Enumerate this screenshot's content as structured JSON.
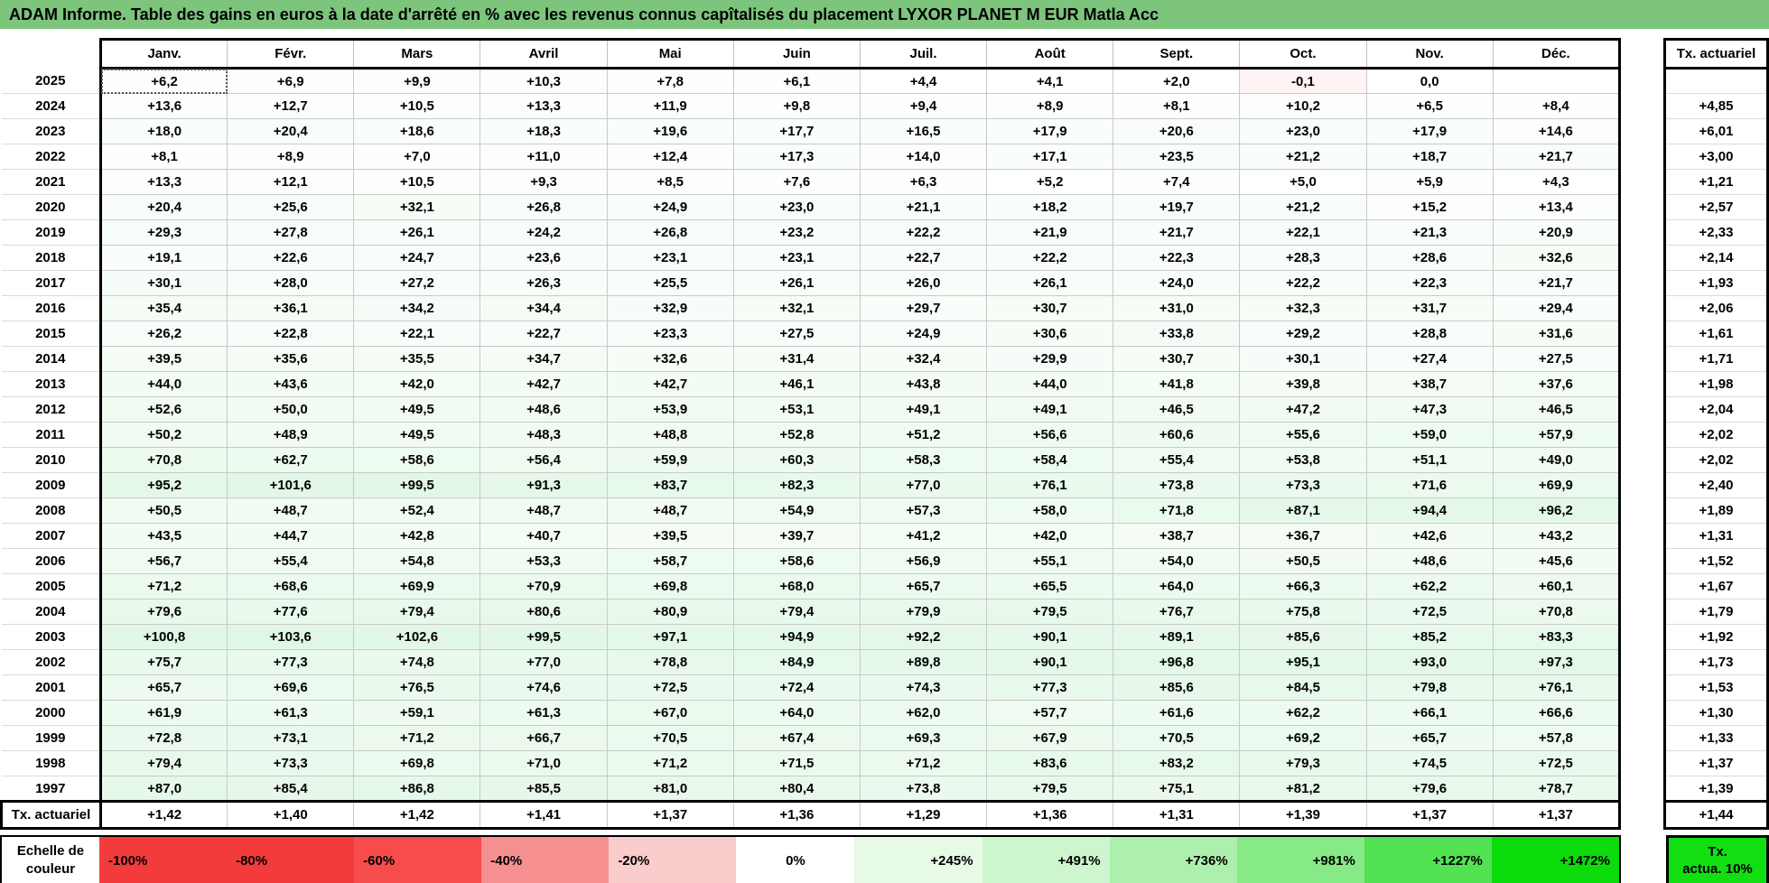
{
  "title": "ADAM Informe. Table des gains en euros à la date d'arrêté en % avec les revenus connus capîtalisés du placement LYXOR PLANET M EUR Matla Acc",
  "colors": {
    "title_bg": "#7DC57D",
    "grid_line": "#C9C9C9",
    "thick_border": "#000000"
  },
  "months": [
    "Janv.",
    "Févr.",
    "Mars",
    "Avril",
    "Mai",
    "Juin",
    "Juil.",
    "Août",
    "Sept.",
    "Oct.",
    "Nov.",
    "Déc."
  ],
  "tx_header": "Tx. actuariel",
  "rows": [
    {
      "year": "2025",
      "values": [
        "+6,2",
        "+6,9",
        "+9,9",
        "+10,3",
        "+7,8",
        "+6,1",
        "+4,4",
        "+4,1",
        "+2,0",
        "-0,1",
        "0,0",
        ""
      ],
      "tx": ""
    },
    {
      "year": "2024",
      "values": [
        "+13,6",
        "+12,7",
        "+10,5",
        "+13,3",
        "+11,9",
        "+9,8",
        "+9,4",
        "+8,9",
        "+8,1",
        "+10,2",
        "+6,5",
        "+8,4"
      ],
      "tx": "+4,85"
    },
    {
      "year": "2023",
      "values": [
        "+18,0",
        "+20,4",
        "+18,6",
        "+18,3",
        "+19,6",
        "+17,7",
        "+16,5",
        "+17,9",
        "+20,6",
        "+23,0",
        "+17,9",
        "+14,6"
      ],
      "tx": "+6,01"
    },
    {
      "year": "2022",
      "values": [
        "+8,1",
        "+8,9",
        "+7,0",
        "+11,0",
        "+12,4",
        "+17,3",
        "+14,0",
        "+17,1",
        "+23,5",
        "+21,2",
        "+18,7",
        "+21,7"
      ],
      "tx": "+3,00"
    },
    {
      "year": "2021",
      "values": [
        "+13,3",
        "+12,1",
        "+10,5",
        "+9,3",
        "+8,5",
        "+7,6",
        "+6,3",
        "+5,2",
        "+7,4",
        "+5,0",
        "+5,9",
        "+4,3"
      ],
      "tx": "+1,21"
    },
    {
      "year": "2020",
      "values": [
        "+20,4",
        "+25,6",
        "+32,1",
        "+26,8",
        "+24,9",
        "+23,0",
        "+21,1",
        "+18,2",
        "+19,7",
        "+21,2",
        "+15,2",
        "+13,4"
      ],
      "tx": "+2,57"
    },
    {
      "year": "2019",
      "values": [
        "+29,3",
        "+27,8",
        "+26,1",
        "+24,2",
        "+26,8",
        "+23,2",
        "+22,2",
        "+21,9",
        "+21,7",
        "+22,1",
        "+21,3",
        "+20,9"
      ],
      "tx": "+2,33"
    },
    {
      "year": "2018",
      "values": [
        "+19,1",
        "+22,6",
        "+24,7",
        "+23,6",
        "+23,1",
        "+23,1",
        "+22,7",
        "+22,2",
        "+22,3",
        "+28,3",
        "+28,6",
        "+32,6"
      ],
      "tx": "+2,14"
    },
    {
      "year": "2017",
      "values": [
        "+30,1",
        "+28,0",
        "+27,2",
        "+26,3",
        "+25,5",
        "+26,1",
        "+26,0",
        "+26,1",
        "+24,0",
        "+22,2",
        "+22,3",
        "+21,7"
      ],
      "tx": "+1,93"
    },
    {
      "year": "2016",
      "values": [
        "+35,4",
        "+36,1",
        "+34,2",
        "+34,4",
        "+32,9",
        "+32,1",
        "+29,7",
        "+30,7",
        "+31,0",
        "+32,3",
        "+31,7",
        "+29,4"
      ],
      "tx": "+2,06"
    },
    {
      "year": "2015",
      "values": [
        "+26,2",
        "+22,8",
        "+22,1",
        "+22,7",
        "+23,3",
        "+27,5",
        "+24,9",
        "+30,6",
        "+33,8",
        "+29,2",
        "+28,8",
        "+31,6"
      ],
      "tx": "+1,61"
    },
    {
      "year": "2014",
      "values": [
        "+39,5",
        "+35,6",
        "+35,5",
        "+34,7",
        "+32,6",
        "+31,4",
        "+32,4",
        "+29,9",
        "+30,7",
        "+30,1",
        "+27,4",
        "+27,5"
      ],
      "tx": "+1,71"
    },
    {
      "year": "2013",
      "values": [
        "+44,0",
        "+43,6",
        "+42,0",
        "+42,7",
        "+42,7",
        "+46,1",
        "+43,8",
        "+44,0",
        "+41,8",
        "+39,8",
        "+38,7",
        "+37,6"
      ],
      "tx": "+1,98"
    },
    {
      "year": "2012",
      "values": [
        "+52,6",
        "+50,0",
        "+49,5",
        "+48,6",
        "+53,9",
        "+53,1",
        "+49,1",
        "+49,1",
        "+46,5",
        "+47,2",
        "+47,3",
        "+46,5"
      ],
      "tx": "+2,04"
    },
    {
      "year": "2011",
      "values": [
        "+50,2",
        "+48,9",
        "+49,5",
        "+48,3",
        "+48,8",
        "+52,8",
        "+51,2",
        "+56,6",
        "+60,6",
        "+55,6",
        "+59,0",
        "+57,9"
      ],
      "tx": "+2,02"
    },
    {
      "year": "2010",
      "values": [
        "+70,8",
        "+62,7",
        "+58,6",
        "+56,4",
        "+59,9",
        "+60,3",
        "+58,3",
        "+58,4",
        "+55,4",
        "+53,8",
        "+51,1",
        "+49,0"
      ],
      "tx": "+2,02"
    },
    {
      "year": "2009",
      "values": [
        "+95,2",
        "+101,6",
        "+99,5",
        "+91,3",
        "+83,7",
        "+82,3",
        "+77,0",
        "+76,1",
        "+73,8",
        "+73,3",
        "+71,6",
        "+69,9"
      ],
      "tx": "+2,40"
    },
    {
      "year": "2008",
      "values": [
        "+50,5",
        "+48,7",
        "+52,4",
        "+48,7",
        "+48,7",
        "+54,9",
        "+57,3",
        "+58,0",
        "+71,8",
        "+87,1",
        "+94,4",
        "+96,2"
      ],
      "tx": "+1,89"
    },
    {
      "year": "2007",
      "values": [
        "+43,5",
        "+44,7",
        "+42,8",
        "+40,7",
        "+39,5",
        "+39,7",
        "+41,2",
        "+42,0",
        "+38,7",
        "+36,7",
        "+42,6",
        "+43,2"
      ],
      "tx": "+1,31"
    },
    {
      "year": "2006",
      "values": [
        "+56,7",
        "+55,4",
        "+54,8",
        "+53,3",
        "+58,7",
        "+58,6",
        "+56,9",
        "+55,1",
        "+54,0",
        "+50,5",
        "+48,6",
        "+45,6"
      ],
      "tx": "+1,52"
    },
    {
      "year": "2005",
      "values": [
        "+71,2",
        "+68,6",
        "+69,9",
        "+70,9",
        "+69,8",
        "+68,0",
        "+65,7",
        "+65,5",
        "+64,0",
        "+66,3",
        "+62,2",
        "+60,1"
      ],
      "tx": "+1,67"
    },
    {
      "year": "2004",
      "values": [
        "+79,6",
        "+77,6",
        "+79,4",
        "+80,6",
        "+80,9",
        "+79,4",
        "+79,9",
        "+79,5",
        "+76,7",
        "+75,8",
        "+72,5",
        "+70,8"
      ],
      "tx": "+1,79"
    },
    {
      "year": "2003",
      "values": [
        "+100,8",
        "+103,6",
        "+102,6",
        "+99,5",
        "+97,1",
        "+94,9",
        "+92,2",
        "+90,1",
        "+89,1",
        "+85,6",
        "+85,2",
        "+83,3"
      ],
      "tx": "+1,92"
    },
    {
      "year": "2002",
      "values": [
        "+75,7",
        "+77,3",
        "+74,8",
        "+77,0",
        "+78,8",
        "+84,9",
        "+89,8",
        "+90,1",
        "+96,8",
        "+95,1",
        "+93,0",
        "+97,3"
      ],
      "tx": "+1,73"
    },
    {
      "year": "2001",
      "values": [
        "+65,7",
        "+69,6",
        "+76,5",
        "+74,6",
        "+72,5",
        "+72,4",
        "+74,3",
        "+77,3",
        "+85,6",
        "+84,5",
        "+79,8",
        "+76,1"
      ],
      "tx": "+1,53"
    },
    {
      "year": "2000",
      "values": [
        "+61,9",
        "+61,3",
        "+59,1",
        "+61,3",
        "+67,0",
        "+64,0",
        "+62,0",
        "+57,7",
        "+61,6",
        "+62,2",
        "+66,1",
        "+66,6"
      ],
      "tx": "+1,30"
    },
    {
      "year": "1999",
      "values": [
        "+72,8",
        "+73,1",
        "+71,2",
        "+66,7",
        "+70,5",
        "+67,4",
        "+69,3",
        "+67,9",
        "+70,5",
        "+69,2",
        "+65,7",
        "+57,8"
      ],
      "tx": "+1,33"
    },
    {
      "year": "1998",
      "values": [
        "+79,4",
        "+73,3",
        "+69,8",
        "+71,0",
        "+71,2",
        "+71,5",
        "+71,2",
        "+83,6",
        "+83,2",
        "+79,3",
        "+74,5",
        "+72,5"
      ],
      "tx": "+1,37"
    },
    {
      "year": "1997",
      "values": [
        "+87,0",
        "+85,4",
        "+86,8",
        "+85,5",
        "+81,0",
        "+80,4",
        "+73,8",
        "+79,5",
        "+75,1",
        "+81,2",
        "+79,6",
        "+78,7"
      ],
      "tx": "+1,39"
    }
  ],
  "tx_row": {
    "label": "Tx. actuariel",
    "values": [
      "+1,42",
      "+1,40",
      "+1,42",
      "+1,41",
      "+1,37",
      "+1,36",
      "+1,29",
      "+1,36",
      "+1,31",
      "+1,39",
      "+1,37",
      "+1,37"
    ],
    "tx": "+1,44"
  },
  "color_scale": {
    "label_line1": "Echelle de",
    "label_line2": "couleur",
    "stops": [
      {
        "label": "-100%",
        "color": "#F43B3C"
      },
      {
        "label": "-80%",
        "color": "#F43B3C"
      },
      {
        "label": "-60%",
        "color": "#F64C4C"
      },
      {
        "label": "-40%",
        "color": "#F69090"
      },
      {
        "label": "-20%",
        "color": "#FACCCC"
      },
      {
        "label": "0%",
        "color": "#FFFFFF"
      },
      {
        "label": "+245%",
        "color": "#E6FAE6"
      },
      {
        "label": "+491%",
        "color": "#CEF6CE"
      },
      {
        "label": "+736%",
        "color": "#ADF0AD"
      },
      {
        "label": "+981%",
        "color": "#86EA86"
      },
      {
        "label": "+1227%",
        "color": "#52E252"
      },
      {
        "label": "+1472%",
        "color": "#0CDB0C"
      }
    ],
    "right_box": {
      "line1": "Tx.",
      "line2": "actua. 10%",
      "color": "#12DF12"
    }
  }
}
